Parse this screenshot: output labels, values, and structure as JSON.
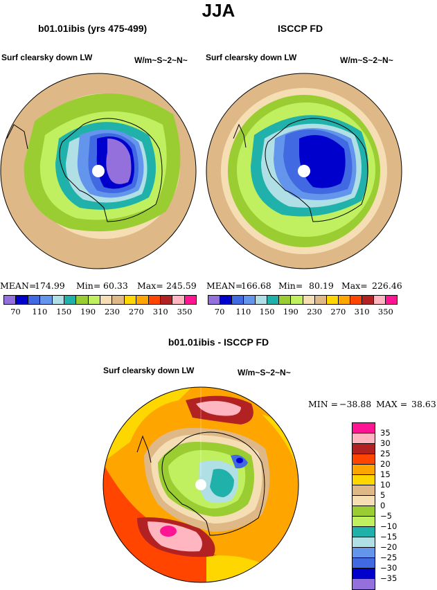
{
  "title": "JJA",
  "panels": [
    {
      "title": "b01.01ibis (yrs 475-499)",
      "variable": "Surf clearsky down LW",
      "units": "W/m~S~2~N~",
      "mean_label": "MEAN=",
      "mean": "174.99",
      "min_label": "Min=",
      "min": "60.33",
      "max_label": "Max=",
      "max": "245.59"
    },
    {
      "title": "ISCCP FD",
      "variable": "Surf clearsky down LW",
      "units": "W/m~S~2~N~",
      "mean_label": "MEAN=",
      "mean": "166.68",
      "min_label": "Min=",
      "min": "80.19",
      "max_label": "Max=",
      "max": "226.46"
    }
  ],
  "abs_colorbar": {
    "colors": [
      "#9370db",
      "#0000cd",
      "#4169e1",
      "#6495ed",
      "#b0e0e6",
      "#20b2aa",
      "#9acd32",
      "#c0f060",
      "#f5deb3",
      "#deb887",
      "#ffd700",
      "#ffa500",
      "#ff4500",
      "#b22222",
      "#ffb6c1",
      "#ff1493"
    ],
    "tick_labels": [
      "70",
      "110",
      "150",
      "190",
      "230",
      "270",
      "310",
      "350"
    ]
  },
  "diff_panel": {
    "title": "b01.01ibis - ISCCP FD",
    "variable": "Surf clearsky down LW",
    "units": "W/m~S~2~N~",
    "min_label": "MIN =",
    "min": "−38.88",
    "max_label": "MAX =",
    "max": "38.63"
  },
  "diff_colorbar": {
    "colors": [
      "#ff1493",
      "#ffb6c1",
      "#b22222",
      "#ff4500",
      "#ffa500",
      "#ffd700",
      "#deb887",
      "#f5deb3",
      "#9acd32",
      "#c0f060",
      "#20b2aa",
      "#b0e0e6",
      "#6495ed",
      "#4169e1",
      "#0000cd",
      "#9370db"
    ],
    "tick_labels": [
      "35",
      "30",
      "25",
      "20",
      "15",
      "10",
      "5",
      "0",
      "−5",
      "−10",
      "−15",
      "−20",
      "−25",
      "−30",
      "−35"
    ]
  }
}
